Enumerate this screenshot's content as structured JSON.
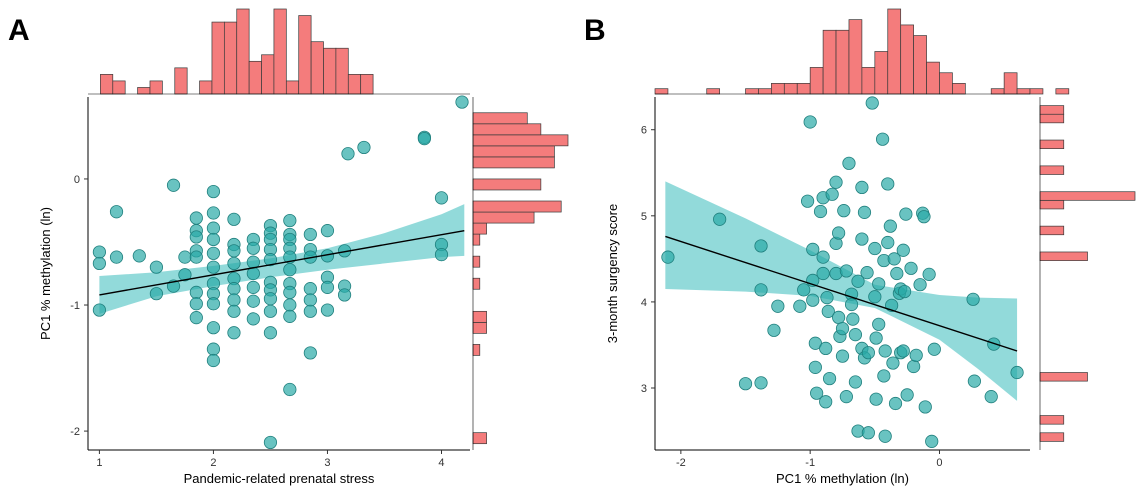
{
  "colors": {
    "point_fill": "#2aa9a7",
    "point_stroke": "#1f7f7d",
    "ribbon": "#7fd3d3",
    "fit_line": "#000000",
    "hist_fill": "#f47c7c",
    "hist_stroke": "#3a3a3a"
  },
  "chart_data": [
    {
      "panel_label": "A",
      "type": "scatter",
      "title": "",
      "xlabel": "Pandemic-related prenatal stress",
      "ylabel": "PC1 % methylation (ln)",
      "xlim": [
        0.9,
        4.25
      ],
      "ylim": [
        -2.15,
        0.65
      ],
      "xticks": [
        1,
        2,
        3,
        4
      ],
      "yticks": [
        -2,
        -1,
        0
      ],
      "grid": false,
      "fit_line": {
        "x": [
          1,
          4.2
        ],
        "y": [
          -0.92,
          -0.41
        ]
      },
      "ribbon": {
        "x": [
          1,
          1.5,
          2,
          2.5,
          3,
          3.5,
          4,
          4.2
        ],
        "lower": [
          -1.07,
          -0.93,
          -0.85,
          -0.78,
          -0.72,
          -0.67,
          -0.62,
          -0.61
        ],
        "upper": [
          -0.77,
          -0.74,
          -0.69,
          -0.63,
          -0.55,
          -0.43,
          -0.28,
          -0.2
        ]
      },
      "points": [
        [
          1.0,
          -0.58
        ],
        [
          1.0,
          -0.67
        ],
        [
          1.0,
          -1.04
        ],
        [
          1.15,
          -0.26
        ],
        [
          1.15,
          -0.62
        ],
        [
          1.35,
          -0.61
        ],
        [
          1.5,
          -0.7
        ],
        [
          1.5,
          -0.91
        ],
        [
          1.65,
          -0.05
        ],
        [
          1.65,
          -0.85
        ],
        [
          1.75,
          -0.62
        ],
        [
          1.75,
          -0.76
        ],
        [
          1.85,
          -0.31
        ],
        [
          1.85,
          -0.41
        ],
        [
          1.85,
          -0.46
        ],
        [
          1.85,
          -0.57
        ],
        [
          1.85,
          -0.62
        ],
        [
          1.85,
          -0.9
        ],
        [
          1.85,
          -0.99
        ],
        [
          1.85,
          -1.1
        ],
        [
          2.0,
          -0.1
        ],
        [
          2.0,
          -0.27
        ],
        [
          2.0,
          -0.39
        ],
        [
          2.0,
          -0.48
        ],
        [
          2.0,
          -0.59
        ],
        [
          2.0,
          -0.7
        ],
        [
          2.0,
          -0.83
        ],
        [
          2.0,
          -0.91
        ],
        [
          2.0,
          -0.99
        ],
        [
          2.0,
          -1.18
        ],
        [
          2.0,
          -1.35
        ],
        [
          2.0,
          -1.44
        ],
        [
          2.18,
          -0.32
        ],
        [
          2.18,
          -0.52
        ],
        [
          2.18,
          -0.57
        ],
        [
          2.18,
          -0.67
        ],
        [
          2.18,
          -0.79
        ],
        [
          2.18,
          -0.87
        ],
        [
          2.18,
          -0.96
        ],
        [
          2.18,
          -1.05
        ],
        [
          2.18,
          -1.22
        ],
        [
          2.35,
          -0.48
        ],
        [
          2.35,
          -0.55
        ],
        [
          2.35,
          -0.66
        ],
        [
          2.35,
          -0.75
        ],
        [
          2.35,
          -0.86
        ],
        [
          2.35,
          -0.97
        ],
        [
          2.35,
          -1.11
        ],
        [
          2.5,
          -0.37
        ],
        [
          2.5,
          -0.43
        ],
        [
          2.5,
          -0.48
        ],
        [
          2.5,
          -0.56
        ],
        [
          2.5,
          -0.64
        ],
        [
          2.5,
          -0.82
        ],
        [
          2.5,
          -0.88
        ],
        [
          2.5,
          -0.95
        ],
        [
          2.5,
          -1.05
        ],
        [
          2.5,
          -1.22
        ],
        [
          2.5,
          -2.09
        ],
        [
          2.67,
          -0.33
        ],
        [
          2.67,
          -0.44
        ],
        [
          2.67,
          -0.48
        ],
        [
          2.67,
          -0.55
        ],
        [
          2.67,
          -0.62
        ],
        [
          2.67,
          -0.72
        ],
        [
          2.67,
          -0.83
        ],
        [
          2.67,
          -0.9
        ],
        [
          2.67,
          -1.0
        ],
        [
          2.67,
          -1.09
        ],
        [
          2.67,
          -1.67
        ],
        [
          2.85,
          -0.44
        ],
        [
          2.85,
          -0.56
        ],
        [
          2.85,
          -0.62
        ],
        [
          2.85,
          -0.87
        ],
        [
          2.85,
          -0.96
        ],
        [
          2.85,
          -1.05
        ],
        [
          2.85,
          -1.38
        ],
        [
          3.0,
          -0.41
        ],
        [
          3.0,
          -0.61
        ],
        [
          3.0,
          -0.78
        ],
        [
          3.0,
          -0.86
        ],
        [
          3.0,
          -1.04
        ],
        [
          3.15,
          -0.57
        ],
        [
          3.15,
          -0.85
        ],
        [
          3.15,
          -0.92
        ],
        [
          3.18,
          0.2
        ],
        [
          3.32,
          0.25
        ],
        [
          3.85,
          0.33
        ],
        [
          3.85,
          0.32
        ],
        [
          4.0,
          -0.15
        ],
        [
          4.0,
          -0.52
        ],
        [
          4.0,
          -0.6
        ],
        [
          4.18,
          0.61
        ]
      ],
      "top_hist": {
        "bin_width": 0.1087,
        "x_start": 0.9,
        "counts": [
          0,
          3,
          2,
          0,
          1,
          2,
          0,
          4,
          0,
          2,
          11,
          11,
          13,
          5,
          6,
          13,
          2,
          12,
          8,
          7,
          7,
          3,
          3,
          0,
          0,
          0,
          0,
          0,
          0,
          0,
          0,
          0
        ]
      },
      "right_hist": {
        "bin_width": 0.0875,
        "y_start": -2.1,
        "counts": [
          2,
          0,
          0,
          0,
          0,
          0,
          0,
          0,
          1,
          0,
          2,
          2,
          0,
          0,
          1,
          0,
          1,
          0,
          1,
          2,
          9,
          13,
          0,
          10,
          0,
          12,
          12,
          14,
          10,
          8,
          0,
          0
        ]
      }
    },
    {
      "panel_label": "B",
      "type": "scatter",
      "title": "",
      "xlabel": "PC1 % methylation (ln)",
      "ylabel": "3-month surgency score",
      "xlim": [
        -2.2,
        0.7
      ],
      "ylim": [
        2.28,
        6.38
      ],
      "xticks": [
        -2,
        -1,
        0
      ],
      "yticks": [
        3,
        4,
        5,
        6
      ],
      "grid": false,
      "fit_line": {
        "x": [
          -2.12,
          0.6
        ],
        "y": [
          4.76,
          3.43
        ]
      },
      "ribbon": {
        "x": [
          -2.12,
          -1.5,
          -1.0,
          -0.5,
          0.0,
          0.3,
          0.6
        ],
        "lower": [
          4.15,
          4.12,
          4.07,
          3.93,
          3.56,
          3.22,
          2.85
        ],
        "upper": [
          5.4,
          4.97,
          4.6,
          4.2,
          4.08,
          4.05,
          4.04
        ]
      },
      "points": [
        [
          -2.1,
          4.52
        ],
        [
          -1.7,
          4.96
        ],
        [
          -1.38,
          4.65
        ],
        [
          -1.38,
          4.14
        ],
        [
          -1.38,
          3.06
        ],
        [
          -1.28,
          3.67
        ],
        [
          -1.25,
          3.95
        ],
        [
          -1.5,
          3.05
        ],
        [
          -1.08,
          3.95
        ],
        [
          -1.05,
          4.14
        ],
        [
          -1.02,
          5.17
        ],
        [
          -1.0,
          6.09
        ],
        [
          -0.98,
          4.61
        ],
        [
          -0.98,
          4.25
        ],
        [
          -0.98,
          4.02
        ],
        [
          -0.96,
          3.52
        ],
        [
          -0.96,
          3.24
        ],
        [
          -0.95,
          2.94
        ],
        [
          -0.92,
          5.05
        ],
        [
          -0.9,
          5.21
        ],
        [
          -0.9,
          4.52
        ],
        [
          -0.9,
          4.33
        ],
        [
          -0.88,
          3.46
        ],
        [
          -0.88,
          2.84
        ],
        [
          -0.87,
          4.05
        ],
        [
          -0.86,
          3.89
        ],
        [
          -0.85,
          3.11
        ],
        [
          -0.83,
          5.25
        ],
        [
          -0.8,
          5.39
        ],
        [
          -0.8,
          4.68
        ],
        [
          -0.8,
          4.33
        ],
        [
          -0.78,
          4.8
        ],
        [
          -0.78,
          3.82
        ],
        [
          -0.77,
          3.6
        ],
        [
          -0.75,
          3.69
        ],
        [
          -0.75,
          3.37
        ],
        [
          -0.74,
          5.06
        ],
        [
          -0.72,
          4.36
        ],
        [
          -0.72,
          2.9
        ],
        [
          -0.7,
          5.61
        ],
        [
          -0.68,
          4.09
        ],
        [
          -0.68,
          3.97
        ],
        [
          -0.67,
          3.8
        ],
        [
          -0.65,
          3.62
        ],
        [
          -0.65,
          3.07
        ],
        [
          -0.63,
          2.5
        ],
        [
          -0.63,
          4.24
        ],
        [
          -0.6,
          5.33
        ],
        [
          -0.6,
          4.73
        ],
        [
          -0.6,
          3.46
        ],
        [
          -0.58,
          5.04
        ],
        [
          -0.58,
          3.35
        ],
        [
          -0.56,
          4.34
        ],
        [
          -0.55,
          3.41
        ],
        [
          -0.55,
          2.48
        ],
        [
          -0.52,
          6.31
        ],
        [
          -0.5,
          4.62
        ],
        [
          -0.5,
          4.06
        ],
        [
          -0.49,
          3.58
        ],
        [
          -0.49,
          2.87
        ],
        [
          -0.47,
          4.21
        ],
        [
          -0.47,
          3.74
        ],
        [
          -0.44,
          5.89
        ],
        [
          -0.43,
          4.48
        ],
        [
          -0.43,
          3.14
        ],
        [
          -0.42,
          3.43
        ],
        [
          -0.42,
          2.44
        ],
        [
          -0.4,
          5.37
        ],
        [
          -0.4,
          4.69
        ],
        [
          -0.38,
          4.88
        ],
        [
          -0.37,
          3.96
        ],
        [
          -0.36,
          3.29
        ],
        [
          -0.35,
          4.5
        ],
        [
          -0.34,
          2.82
        ],
        [
          -0.33,
          4.33
        ],
        [
          -0.31,
          4.1
        ],
        [
          -0.3,
          4.15
        ],
        [
          -0.3,
          3.41
        ],
        [
          -0.28,
          4.6
        ],
        [
          -0.28,
          3.43
        ],
        [
          -0.27,
          4.12
        ],
        [
          -0.26,
          5.02
        ],
        [
          -0.25,
          2.92
        ],
        [
          -0.22,
          4.39
        ],
        [
          -0.2,
          3.25
        ],
        [
          -0.18,
          3.38
        ],
        [
          -0.15,
          4.2
        ],
        [
          -0.13,
          5.03
        ],
        [
          -0.12,
          4.99
        ],
        [
          -0.11,
          2.78
        ],
        [
          -0.08,
          4.32
        ],
        [
          -0.04,
          3.45
        ],
        [
          -0.06,
          2.38
        ],
        [
          0.26,
          4.03
        ],
        [
          0.27,
          3.08
        ],
        [
          0.4,
          2.9
        ],
        [
          0.42,
          3.51
        ],
        [
          0.6,
          3.18
        ]
      ],
      "top_hist": {
        "bin_width": 0.1,
        "x_start": -2.2,
        "counts": [
          1,
          0,
          0,
          0,
          1,
          0,
          0,
          1,
          1,
          2,
          2,
          2,
          5,
          12,
          12,
          14,
          5,
          8,
          16,
          13,
          11,
          6,
          4,
          2,
          0,
          0,
          1,
          4,
          1,
          1,
          0,
          1
        ]
      },
      "right_hist": {
        "bin_width": 0.1,
        "y_start": 2.38,
        "counts": [
          1,
          0,
          1,
          0,
          0,
          0,
          0,
          2,
          0,
          0,
          0,
          0,
          0,
          0,
          0,
          0,
          0,
          0,
          0,
          0,
          0,
          2,
          0,
          0,
          1,
          0,
          0,
          1,
          4,
          0,
          0,
          1,
          0,
          0,
          1,
          0,
          0,
          1,
          1,
          0
        ]
      }
    }
  ]
}
